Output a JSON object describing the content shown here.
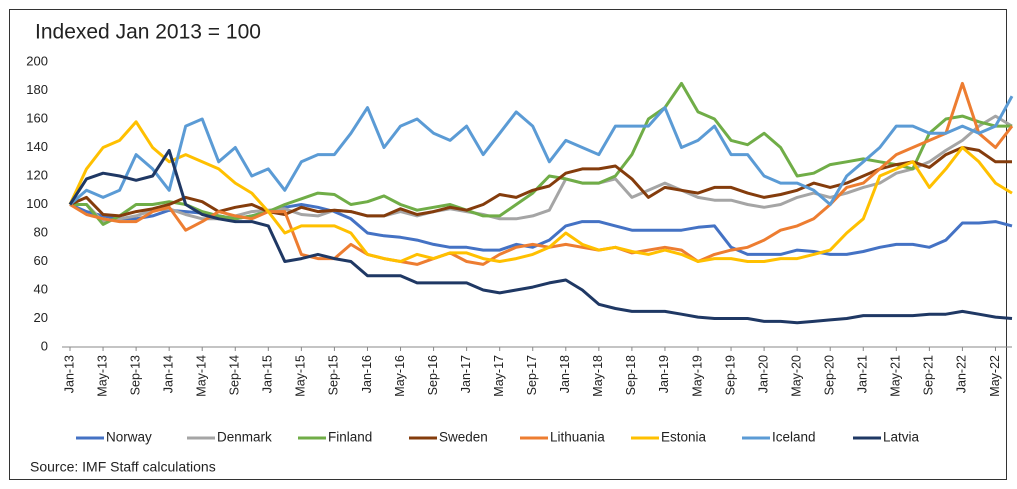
{
  "chart_data": {
    "type": "line",
    "title": "Indexed Jan 2013 = 100",
    "source": "Source: IMF Staff calculations",
    "categories": [
      "Jan-13",
      null,
      "May-13",
      null,
      "Sep-13",
      null,
      "Jan-14",
      null,
      "May-14",
      null,
      "Sep-14",
      null,
      "Jan-15",
      null,
      "May-15",
      null,
      "Sep-15",
      null,
      "Jan-16",
      null,
      "May-16",
      null,
      "Sep-16",
      null,
      "Jan-17",
      null,
      "May-17",
      null,
      "Sep-17",
      null,
      "Jan-18",
      null,
      "May-18",
      null,
      "Sep-18",
      null,
      "Jan-19",
      null,
      "May-19",
      null,
      "Sep-19",
      null,
      "Jan-20",
      null,
      "May-20",
      null,
      "Sep-20",
      null,
      "Jan-21",
      null,
      "May-21",
      null,
      "Sep-21",
      null,
      "Jan-22",
      null,
      "May-22",
      null
    ],
    "ylim": [
      0,
      200
    ],
    "yticks": [
      0,
      20,
      40,
      60,
      80,
      100,
      120,
      140,
      160,
      180,
      200
    ],
    "grid": false,
    "legend": "bottom",
    "series": [
      {
        "name": "Norway",
        "color": "#4472c4",
        "values": [
          100,
          95,
          92,
          90,
          90,
          92,
          96,
          95,
          94,
          92,
          90,
          92,
          95,
          98,
          100,
          98,
          95,
          90,
          80,
          78,
          77,
          75,
          72,
          70,
          70,
          68,
          68,
          72,
          70,
          75,
          85,
          88,
          88,
          85,
          82,
          82,
          82,
          82,
          84,
          85,
          70,
          65,
          65,
          65,
          68,
          67,
          65,
          65,
          67,
          70,
          72,
          72,
          70,
          75,
          87,
          87,
          88,
          85
        ]
      },
      {
        "name": "Denmark",
        "color": "#a5a5a5",
        "values": [
          100,
          100,
          88,
          90,
          92,
          96,
          97,
          93,
          90,
          90,
          92,
          95,
          96,
          97,
          93,
          92,
          96,
          95,
          92,
          92,
          95,
          92,
          95,
          97,
          95,
          93,
          90,
          90,
          92,
          96,
          118,
          115,
          115,
          118,
          105,
          110,
          115,
          110,
          105,
          103,
          103,
          100,
          98,
          100,
          105,
          108,
          105,
          108,
          112,
          115,
          122,
          125,
          130,
          138,
          145,
          155,
          162,
          155
        ]
      },
      {
        "name": "Finland",
        "color": "#70ad47",
        "values": [
          100,
          100,
          86,
          92,
          100,
          100,
          102,
          100,
          95,
          92,
          90,
          92,
          95,
          100,
          104,
          108,
          107,
          100,
          102,
          106,
          100,
          96,
          98,
          100,
          96,
          92,
          92,
          100,
          108,
          120,
          118,
          115,
          115,
          120,
          135,
          160,
          168,
          185,
          165,
          160,
          145,
          142,
          150,
          140,
          120,
          122,
          128,
          130,
          132,
          130,
          128,
          125,
          150,
          160,
          162,
          158,
          155,
          155
        ]
      },
      {
        "name": "Sweden",
        "color": "#843c0c",
        "values": [
          100,
          105,
          93,
          92,
          95,
          97,
          100,
          105,
          102,
          95,
          98,
          100,
          95,
          93,
          98,
          95,
          96,
          95,
          92,
          92,
          97,
          93,
          95,
          98,
          96,
          100,
          107,
          105,
          110,
          113,
          122,
          125,
          125,
          127,
          118,
          105,
          112,
          110,
          108,
          112,
          112,
          108,
          105,
          107,
          110,
          115,
          112,
          115,
          120,
          125,
          128,
          130,
          126,
          135,
          140,
          138,
          130,
          130
        ]
      },
      {
        "name": "Lithuania",
        "color": "#ed7d31",
        "values": [
          100,
          93,
          90,
          88,
          88,
          95,
          98,
          82,
          88,
          95,
          92,
          90,
          95,
          95,
          65,
          62,
          62,
          72,
          65,
          62,
          60,
          58,
          62,
          66,
          60,
          58,
          65,
          70,
          72,
          70,
          72,
          70,
          68,
          70,
          66,
          68,
          70,
          68,
          60,
          65,
          68,
          70,
          75,
          82,
          85,
          90,
          100,
          112,
          115,
          125,
          135,
          140,
          145,
          150,
          185,
          150,
          140,
          155
        ]
      },
      {
        "name": "Estonia",
        "color": "#ffc000",
        "values": [
          100,
          125,
          140,
          145,
          158,
          140,
          130,
          135,
          130,
          125,
          115,
          108,
          95,
          80,
          85,
          85,
          85,
          80,
          65,
          62,
          60,
          65,
          62,
          66,
          66,
          62,
          60,
          62,
          65,
          70,
          80,
          72,
          68,
          70,
          67,
          65,
          68,
          65,
          60,
          62,
          62,
          60,
          60,
          62,
          62,
          65,
          68,
          80,
          90,
          120,
          125,
          130,
          112,
          125,
          140,
          130,
          115,
          108
        ]
      },
      {
        "name": "Iceland",
        "color": "#5b9bd5",
        "values": [
          100,
          110,
          105,
          110,
          135,
          125,
          110,
          155,
          160,
          130,
          140,
          120,
          125,
          110,
          130,
          135,
          135,
          150,
          168,
          140,
          155,
          160,
          150,
          145,
          155,
          135,
          150,
          165,
          155,
          130,
          145,
          140,
          135,
          155,
          155,
          155,
          168,
          140,
          145,
          155,
          135,
          135,
          120,
          115,
          115,
          110,
          100,
          120,
          130,
          140,
          155,
          155,
          150,
          150,
          155,
          150,
          155,
          176
        ]
      },
      {
        "name": "Latvia",
        "color": "#1f3864",
        "values": [
          100,
          118,
          122,
          120,
          117,
          120,
          138,
          100,
          93,
          90,
          88,
          88,
          85,
          60,
          62,
          65,
          62,
          60,
          50,
          50,
          50,
          45,
          45,
          45,
          45,
          40,
          38,
          40,
          42,
          45,
          47,
          40,
          30,
          27,
          25,
          25,
          25,
          23,
          21,
          20,
          20,
          20,
          18,
          18,
          17,
          18,
          19,
          20,
          22,
          22,
          22,
          22,
          23,
          23,
          25,
          23,
          21,
          20
        ]
      }
    ]
  }
}
